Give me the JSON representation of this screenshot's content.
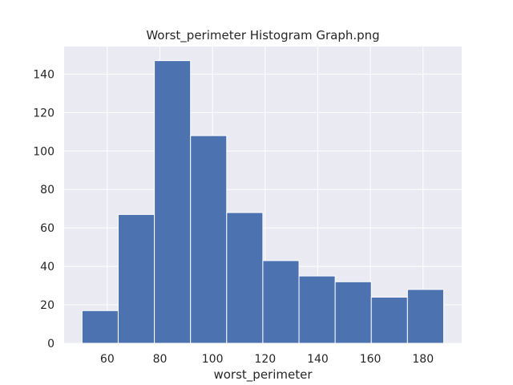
{
  "chart_data": {
    "type": "bar",
    "title": "Worst_perimeter Histogram Graph.png",
    "xlabel": "worst_perimeter",
    "ylabel": "",
    "bins": [
      {
        "x0": 50.41,
        "x1": 64.15,
        "count": 17
      },
      {
        "x0": 64.15,
        "x1": 77.9,
        "count": 67
      },
      {
        "x0": 77.9,
        "x1": 91.64,
        "count": 147
      },
      {
        "x0": 91.64,
        "x1": 105.38,
        "count": 108
      },
      {
        "x0": 105.38,
        "x1": 119.12,
        "count": 68
      },
      {
        "x0": 119.12,
        "x1": 132.87,
        "count": 43
      },
      {
        "x0": 132.87,
        "x1": 146.61,
        "count": 35
      },
      {
        "x0": 146.61,
        "x1": 160.35,
        "count": 32
      },
      {
        "x0": 160.35,
        "x1": 174.09,
        "count": 24
      },
      {
        "x0": 174.09,
        "x1": 187.84,
        "count": 28
      }
    ],
    "xlim": [
      43.6,
      194.7
    ],
    "ylim": [
      0,
      154.35
    ],
    "xticks": [
      60,
      80,
      100,
      120,
      140,
      160,
      180
    ],
    "yticks": [
      0,
      20,
      40,
      60,
      80,
      100,
      120,
      140
    ],
    "grid": true,
    "colors": {
      "bar": "#4c72b0",
      "background": "#eaeaf2",
      "grid": "#ffffff",
      "text": "#262626"
    }
  }
}
